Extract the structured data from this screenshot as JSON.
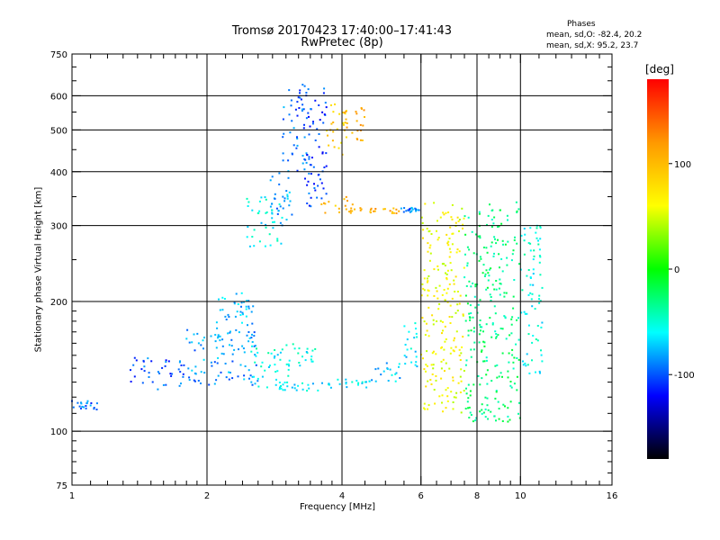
{
  "chart_data": {
    "type": "scatter",
    "title": "Tromsø 20170423 17:40:00–17:41:43",
    "subtitle": "RwPretec (8p)",
    "xlabel": "Frequency [MHz]",
    "ylabel": "Stationary phase Virtual Height [km]",
    "x_scale": "log",
    "y_scale": "log",
    "xlim": [
      1,
      16
    ],
    "ylim": [
      75,
      750
    ],
    "x_ticks": [
      1,
      2,
      4,
      6,
      8,
      10,
      16
    ],
    "x_minor_ticks": [
      1.1,
      1.2,
      1.3,
      1.4,
      1.5,
      1.6,
      1.7,
      1.8,
      1.9,
      2.2,
      2.4,
      2.6,
      2.8,
      3,
      3.2,
      3.4,
      3.6,
      3.8,
      4.5,
      5,
      5.5,
      6.5,
      7,
      7.5,
      8.5,
      9,
      9.5,
      11,
      12,
      13,
      14,
      15
    ],
    "y_ticks": [
      75,
      100,
      200,
      300,
      400,
      500,
      600,
      750
    ],
    "y_minor_ticks": [
      80,
      85,
      90,
      95,
      110,
      120,
      130,
      140,
      150,
      160,
      170,
      180,
      190,
      250,
      350,
      450,
      550,
      650,
      700
    ],
    "grid": true,
    "grid_x": [
      2,
      4,
      6,
      8,
      10
    ],
    "grid_y": [
      100,
      200,
      300,
      400,
      500,
      600
    ],
    "colorbar": {
      "label": "[deg]",
      "ticks": [
        100,
        0,
        -100
      ],
      "range": [
        -180,
        180
      ],
      "colors": [
        "#ff0000",
        "#ff9900",
        "#ffff00",
        "#00ff00",
        "#00ffff",
        "#0000ff",
        "#000000"
      ]
    },
    "phases_header": "Phases",
    "phases_o": "mean, sd,O: -82.4, 20.2",
    "phases_x": "mean, sd,X:  95.2, 23.7",
    "series": [
      {
        "x": [
          1.0,
          1.15
        ],
        "y": [
          112,
          118
        ],
        "phase": -95
      },
      {
        "x": [
          1.35,
          1.8
        ],
        "y": [
          125,
          148
        ],
        "phase": -100
      },
      {
        "x": [
          1.8,
          2.6
        ],
        "y": [
          128,
          172
        ],
        "phase": -85
      },
      {
        "x": [
          2.05,
          2.55
        ],
        "y": [
          165,
          210
        ],
        "phase": -75
      },
      {
        "x": [
          2.5,
          3.05
        ],
        "y": [
          125,
          158
        ],
        "phase": -55
      },
      {
        "x": [
          3.0,
          3.5
        ],
        "y": [
          142,
          160
        ],
        "phase": -55
      },
      {
        "x": [
          2.9,
          3.6
        ],
        "y": [
          124,
          130
        ],
        "phase": -65
      },
      {
        "x": [
          3.6,
          4.6
        ],
        "y": [
          126,
          132
        ],
        "phase": -60
      },
      {
        "x": [
          4.6,
          5.4
        ],
        "y": [
          130,
          145
        ],
        "phase": -70
      },
      {
        "x": [
          5.5,
          5.9
        ],
        "y": [
          140,
          180
        ],
        "phase": -65
      },
      {
        "x": [
          2.45,
          2.95
        ],
        "y": [
          265,
          350
        ],
        "phase": -60
      },
      {
        "x": [
          2.75,
          3.1
        ],
        "y": [
          300,
          400
        ],
        "phase": -85
      },
      {
        "x": [
          2.95,
          3.35
        ],
        "y": [
          400,
          640
        ],
        "phase": -95
      },
      {
        "x": [
          3.3,
          3.7
        ],
        "y": [
          330,
          640
        ],
        "phase": -105
      },
      {
        "x": [
          3.7,
          4.1
        ],
        "y": [
          430,
          580
        ],
        "phase": 85
      },
      {
        "x": [
          4.0,
          4.5
        ],
        "y": [
          460,
          570
        ],
        "phase": 110
      },
      {
        "x": [
          3.6,
          4.3
        ],
        "y": [
          320,
          350
        ],
        "phase": 100
      },
      {
        "x": [
          4.3,
          5.4
        ],
        "y": [
          320,
          330
        ],
        "phase": 110
      },
      {
        "x": [
          5.4,
          6.0
        ],
        "y": [
          322,
          330
        ],
        "phase": -90
      },
      {
        "x": [
          6.0,
          7.5
        ],
        "y": [
          110,
          340
        ],
        "phase": 60
      },
      {
        "x": [
          7.5,
          10.0
        ],
        "y": [
          105,
          340
        ],
        "phase": -30
      },
      {
        "x": [
          10.0,
          11.2
        ],
        "y": [
          135,
          300
        ],
        "phase": -55
      }
    ]
  }
}
